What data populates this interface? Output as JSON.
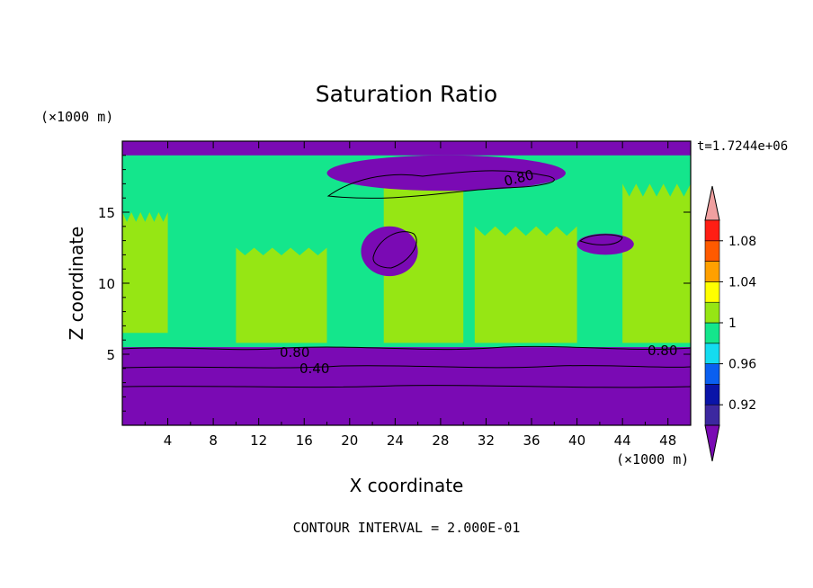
{
  "chart_data": {
    "type": "heatmap",
    "title": "Saturation Ratio",
    "xlabel": "X coordinate",
    "ylabel": "Z coordinate",
    "x_units": "(×1000 m)",
    "y_units": "(×1000 m)",
    "time_label": "t=1.7244e+06",
    "footer": "CONTOUR INTERVAL = 2.000E-01",
    "xlim": [
      0,
      50
    ],
    "ylim": [
      0,
      20
    ],
    "x_ticks": [
      "4",
      "8",
      "12",
      "16",
      "20",
      "24",
      "28",
      "32",
      "36",
      "40",
      "44",
      "48"
    ],
    "y_ticks": [
      "5",
      "10",
      "15"
    ],
    "colorbar": {
      "labels": [
        "0.92",
        "0.96",
        "1",
        "1.04",
        "1.08"
      ],
      "label_values": [
        0.92,
        0.96,
        1.0,
        1.04,
        1.08
      ],
      "levels": [
        0.9,
        0.92,
        0.94,
        0.96,
        0.98,
        1.0,
        1.02,
        1.04,
        1.06,
        1.08,
        1.1
      ],
      "colors": [
        "#7a0ab4",
        "#3c28a0",
        "#0a14a8",
        "#0a5ff0",
        "#14dcf0",
        "#14e68c",
        "#96e614",
        "#ffff00",
        "#ffa000",
        "#ff5a00",
        "#ff1e14",
        "#f0a0a0"
      ]
    },
    "contour_labels": [
      "0.80",
      "0.80",
      "0.40",
      "0.80"
    ],
    "regions": [
      {
        "layer": "base",
        "value": 0.99,
        "x": [
          0,
          50
        ],
        "z": [
          5.5,
          20
        ]
      },
      {
        "layer": "lower_dry_layer",
        "value": 0.4,
        "x": [
          0,
          50
        ],
        "z": [
          0,
          5.5
        ]
      },
      {
        "layer": "supersaturated_column",
        "value": 1.01,
        "x": [
          0,
          4
        ],
        "z": [
          6.5,
          15
        ]
      },
      {
        "layer": "supersaturated_column",
        "value": 1.01,
        "x": [
          10,
          18
        ],
        "z": [
          5.8,
          12.5
        ]
      },
      {
        "layer": "supersaturated_column",
        "value": 1.01,
        "x": [
          23,
          30
        ],
        "z": [
          5.8,
          18
        ]
      },
      {
        "layer": "supersaturated_column",
        "value": 1.01,
        "x": [
          31,
          40
        ],
        "z": [
          5.8,
          14
        ]
      },
      {
        "layer": "supersaturated_column",
        "value": 1.01,
        "x": [
          44,
          50
        ],
        "z": [
          5.8,
          17
        ]
      },
      {
        "layer": "dry_top",
        "value": 0.8,
        "x": [
          0,
          50
        ],
        "z": [
          19,
          20
        ]
      },
      {
        "layer": "dry_patch",
        "value": 0.8,
        "x": [
          18,
          39
        ],
        "z": [
          16.5,
          19
        ]
      },
      {
        "layer": "dry_patch",
        "value": 0.8,
        "x": [
          21,
          26
        ],
        "z": [
          10.5,
          14
        ]
      },
      {
        "layer": "dry_patch",
        "value": 0.8,
        "x": [
          40,
          45
        ],
        "z": [
          12,
          13.5
        ]
      }
    ]
  }
}
